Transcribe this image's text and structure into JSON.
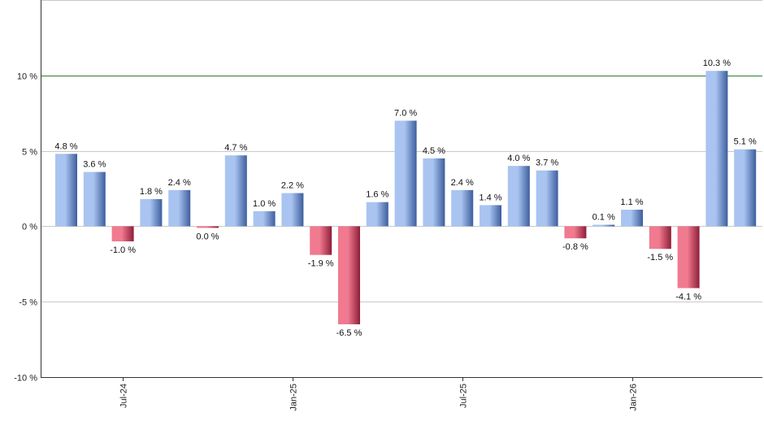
{
  "chart_data": {
    "type": "bar",
    "title": "",
    "xlabel": "",
    "ylabel": "",
    "ylim": [
      -10,
      15
    ],
    "y_ticks": [
      -10,
      -5,
      0,
      5,
      10
    ],
    "y_tick_labels": [
      "-10 %",
      "-5 %",
      "0 %",
      "5 %",
      "10 %"
    ],
    "reference_line": 10,
    "grid": true,
    "legend": "none",
    "x_tick_labels": [
      {
        "label": "Jul-24",
        "index": 2
      },
      {
        "label": "Jan-25",
        "index": 8
      },
      {
        "label": "Jul-25",
        "index": 14
      },
      {
        "label": "Jan-26",
        "index": 20
      }
    ],
    "values": [
      4.8,
      3.6,
      -1.0,
      1.8,
      2.4,
      -0.04,
      4.7,
      1.0,
      2.2,
      -1.9,
      -6.5,
      1.6,
      7.0,
      4.5,
      2.4,
      1.4,
      4.0,
      3.7,
      -0.8,
      0.1,
      1.1,
      -1.5,
      -4.1,
      10.3,
      5.1
    ],
    "labels": [
      "4.8 %",
      "3.6 %",
      "-1.0 %",
      "1.8 %",
      "2.4 %",
      "0.0 %",
      "4.7 %",
      "1.0 %",
      "2.2 %",
      "-1.9 %",
      "-6.5 %",
      "1.6 %",
      "7.0 %",
      "4.5 %",
      "2.4 %",
      "1.4 %",
      "4.0 %",
      "3.7 %",
      "-0.8 %",
      "0.1 %",
      "1.1 %",
      "-1.5 %",
      "-4.1 %",
      "10.3 %",
      "5.1 %"
    ],
    "colors": {
      "positive_light": "#a9c4f0",
      "positive_dark": "#3d5e9e",
      "negative_light": "#f07a8f",
      "negative_dark": "#8e1e38",
      "grid": "#c8c8c8",
      "reference": "#2e7d32",
      "axis": "#333333"
    }
  }
}
